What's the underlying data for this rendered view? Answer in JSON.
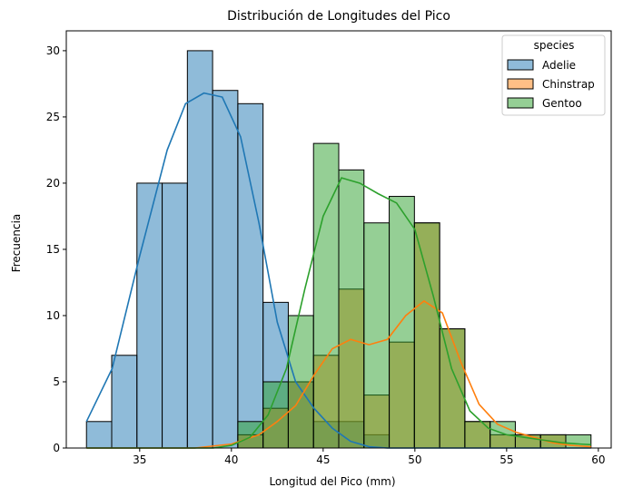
{
  "chart_data": {
    "type": "histogram",
    "title": "Distribución de Longitudes del Pico",
    "xlabel": "Longitud del Pico (mm)",
    "ylabel": "Frecuencia",
    "xlim": [
      31.0,
      60.7
    ],
    "ylim": [
      0,
      31.5
    ],
    "xticks": [
      35,
      40,
      45,
      50,
      55,
      60
    ],
    "yticks": [
      0,
      5,
      10,
      15,
      20,
      25,
      30
    ],
    "bin_edges": [
      32.1,
      33.475,
      34.85,
      36.225,
      37.6,
      38.975,
      40.35,
      41.725,
      43.1,
      44.475,
      45.85,
      47.225,
      48.6,
      49.975,
      51.35,
      52.725,
      54.1,
      55.475,
      56.85,
      58.225,
      59.6
    ],
    "legend": {
      "title": "species",
      "position": "upper right"
    },
    "series": [
      {
        "name": "Adelie",
        "color": "#1f77b4",
        "values": [
          2,
          7,
          20,
          20,
          30,
          27,
          26,
          11,
          5,
          2,
          2,
          1,
          0,
          0,
          0,
          0,
          0,
          0,
          0,
          0
        ],
        "kde": [
          [
            32.1,
            2.0
          ],
          [
            33.5,
            6.0
          ],
          [
            35.0,
            14.5
          ],
          [
            36.5,
            22.5
          ],
          [
            37.5,
            26.0
          ],
          [
            38.5,
            26.8
          ],
          [
            39.5,
            26.5
          ],
          [
            40.5,
            23.5
          ],
          [
            41.5,
            17.0
          ],
          [
            42.5,
            9.5
          ],
          [
            43.5,
            5.0
          ],
          [
            44.5,
            3.0
          ],
          [
            45.5,
            1.5
          ],
          [
            46.5,
            0.5
          ],
          [
            47.5,
            0.1
          ],
          [
            48.5,
            0.0
          ],
          [
            50,
            0
          ],
          [
            52,
            0
          ],
          [
            55,
            0
          ],
          [
            58,
            0
          ],
          [
            59.6,
            0
          ]
        ]
      },
      {
        "name": "Chinstrap",
        "color": "#ff7f0e",
        "values": [
          0,
          0,
          0,
          0,
          0,
          0,
          1,
          3,
          5,
          7,
          12,
          4,
          8,
          17,
          9,
          2,
          1,
          1,
          1,
          0
        ],
        "kde": [
          [
            32.1,
            0
          ],
          [
            38,
            0
          ],
          [
            40,
            0.3
          ],
          [
            41.5,
            1.0
          ],
          [
            42.5,
            2.0
          ],
          [
            43.5,
            3.2
          ],
          [
            44.5,
            5.5
          ],
          [
            45.5,
            7.5
          ],
          [
            46.5,
            8.2
          ],
          [
            47.5,
            7.8
          ],
          [
            48.5,
            8.2
          ],
          [
            49.5,
            10.0
          ],
          [
            50.5,
            11.1
          ],
          [
            51.5,
            10.2
          ],
          [
            52.5,
            6.5
          ],
          [
            53.5,
            3.3
          ],
          [
            54.5,
            1.8
          ],
          [
            55.5,
            1.2
          ],
          [
            56.5,
            0.8
          ],
          [
            57.5,
            0.4
          ],
          [
            58.5,
            0.2
          ],
          [
            59.6,
            0.1
          ]
        ]
      },
      {
        "name": "Gentoo",
        "color": "#2ca02c",
        "values": [
          0,
          0,
          0,
          0,
          0,
          0,
          2,
          5,
          10,
          23,
          21,
          17,
          19,
          17,
          9,
          2,
          2,
          1,
          1,
          1
        ],
        "kde": [
          [
            32.1,
            0
          ],
          [
            39,
            0
          ],
          [
            40,
            0.2
          ],
          [
            41,
            0.8
          ],
          [
            42,
            2.5
          ],
          [
            43,
            6.0
          ],
          [
            44,
            12.0
          ],
          [
            45,
            17.5
          ],
          [
            46,
            20.4
          ],
          [
            47,
            20.0
          ],
          [
            48,
            19.2
          ],
          [
            49,
            18.5
          ],
          [
            50,
            16.5
          ],
          [
            51,
            11.5
          ],
          [
            52,
            6.0
          ],
          [
            53,
            2.8
          ],
          [
            54,
            1.5
          ],
          [
            55,
            1.0
          ],
          [
            56,
            0.8
          ],
          [
            57,
            0.6
          ],
          [
            58,
            0.4
          ],
          [
            59,
            0.3
          ],
          [
            59.6,
            0.25
          ]
        ]
      }
    ]
  }
}
